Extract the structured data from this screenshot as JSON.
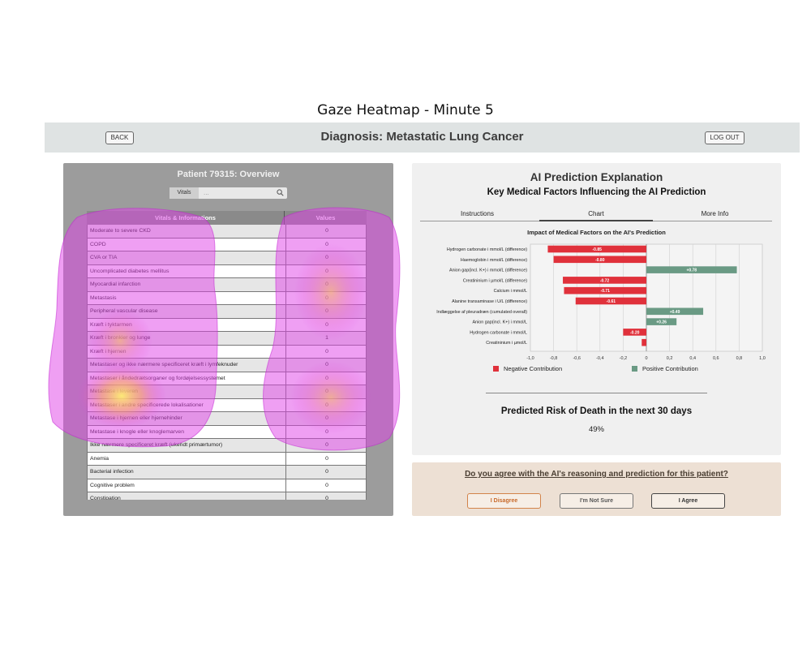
{
  "figure": {
    "title": "Gaze Heatmap - Minute 5"
  },
  "topbar": {
    "back_label": "BACK",
    "title": "Diagnosis: Metastatic Lung Cancer",
    "logout_label": "LOG OUT"
  },
  "patient": {
    "title": "Patient 79315: Overview",
    "search_label": "Vitals",
    "search_placeholder": "...",
    "table": {
      "headers": [
        "Vitals & Informations",
        "Values"
      ],
      "rows": [
        {
          "name": "Moderate to severe CKD",
          "value": "0"
        },
        {
          "name": "COPD",
          "value": "0"
        },
        {
          "name": "CVA or TIA",
          "value": "0"
        },
        {
          "name": "Uncomplicated diabetes mellitus",
          "value": "0"
        },
        {
          "name": "Myocardial infarction",
          "value": "0"
        },
        {
          "name": "Metastasis",
          "value": "0"
        },
        {
          "name": "Peripheral vascular disease",
          "value": "0"
        },
        {
          "name": "Kræft i tyktarmen",
          "value": "0"
        },
        {
          "name": "Kræft i bronkier og lunge",
          "value": "1"
        },
        {
          "name": "Kræft i hjernen",
          "value": "0"
        },
        {
          "name": "Metastaser og ikke nærmere specificeret kræft i lymfeknuder",
          "value": "0"
        },
        {
          "name": "Metastaser i åndedrætsorganer og fordøjelsessystemet",
          "value": "0"
        },
        {
          "name": "Metastase i leveren",
          "value": "0"
        },
        {
          "name": "Metastaser i andre specificerede lokalisationer",
          "value": "0"
        },
        {
          "name": "Metastase i hjernen eller hjernehinder",
          "value": "0"
        },
        {
          "name": "Metastase i knogle eller knoglemarven",
          "value": "0"
        },
        {
          "name": "Ikke nærmere specificeret kræft (ukendt primærtumor)",
          "value": "0"
        },
        {
          "name": "Anemia",
          "value": "0"
        },
        {
          "name": "Bacterial infection",
          "value": "0"
        },
        {
          "name": "Cognitive problem",
          "value": "0"
        },
        {
          "name": "Constipation",
          "value": "0"
        }
      ]
    }
  },
  "explanation": {
    "title": "AI Prediction Explanation",
    "subtitle": "Key Medical Factors Influencing the AI Prediction",
    "tabs": [
      {
        "label": "Instructions",
        "active": false
      },
      {
        "label": "Chart",
        "active": true
      },
      {
        "label": "More Info",
        "active": false
      }
    ],
    "chart_title": "Impact of Medical Factors on the AI's Prediction",
    "legend": {
      "negative": "Negative Contribution",
      "positive": "Positive Contribution"
    },
    "risk_title": "Predicted Risk of Death in the next 30 days",
    "risk_value": "49%"
  },
  "agree": {
    "question": "Do you agree with the AI's reasoning and prediction for this patient?",
    "disagree": "I Disagree",
    "not_sure": "I'm Not Sure",
    "agree": "I Agree"
  },
  "colors": {
    "negative": "#e0313b",
    "positive": "#6a9a84",
    "heat_outer": "#e040e8",
    "heat_core": "#fff06a"
  },
  "chart_data": {
    "type": "bar",
    "orientation": "horizontal",
    "title": "Impact of Medical Factors on the AI's Prediction",
    "categories": [
      "Hydrogen carbonate i mmol/L (difference)",
      "Haemoglobin i mmol/L (difference)",
      "Anion gap(incl. K+) i mmol/L (difference)",
      "Creatininium i µmol/L (difference)",
      "Calcium i mmol/L",
      "Alanine transaminase i U/L (difference)",
      "Indlæggelse af pleuradræn (cumulated overall)",
      "Anion gap(incl. K+) i mmol/L",
      "Hydrogen carbonate i mmol/L",
      "Creatininium i µmol/L"
    ],
    "values": [
      -0.85,
      -0.8,
      0.78,
      -0.72,
      -0.71,
      -0.61,
      0.49,
      0.26,
      -0.2,
      -0.04
    ],
    "labels": [
      "-0.85",
      "-0.80",
      "+0.78",
      "-0.72",
      "-0.71",
      "-0.61",
      "+0.49",
      "+0.26",
      "-0.20",
      ""
    ],
    "xlim": [
      -1.0,
      1.0
    ],
    "xticks": [
      "-1,0",
      "-0,8",
      "-0,6",
      "-0,4",
      "-0,2",
      "0",
      "0,2",
      "0,4",
      "0,6",
      "0,8",
      "1,0"
    ],
    "grid": true,
    "legend_position": "bottom"
  }
}
